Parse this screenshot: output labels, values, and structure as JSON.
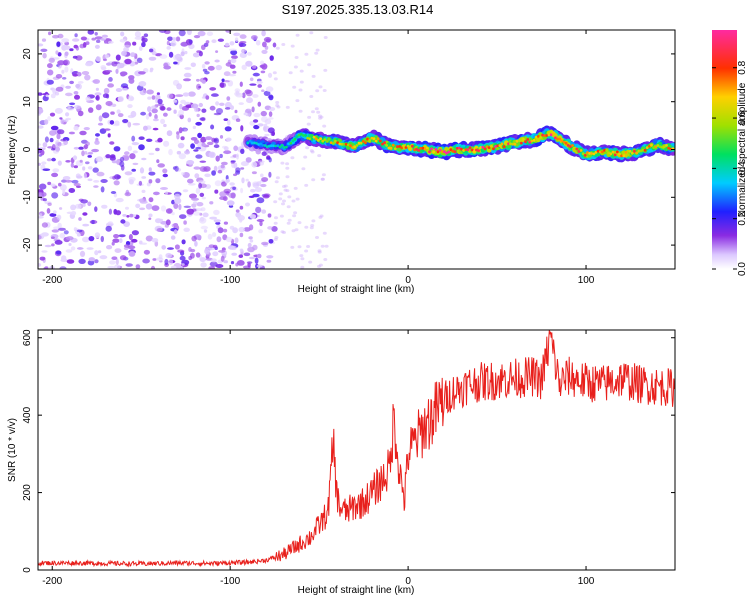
{
  "title": "S197.2025.335.13.03.R14",
  "colors": {
    "snr_line": "#e8201c",
    "frame": "#000000"
  },
  "chart_data": [
    {
      "type": "heatmap",
      "xlabel": "Height of straight line (km)",
      "ylabel": "Frequency (Hz)",
      "xlim": [
        -208,
        150
      ],
      "ylim": [
        -25,
        25
      ],
      "xticks": [
        -200,
        -100,
        0,
        100
      ],
      "xtick_labels": [
        "-200",
        "-100",
        "0",
        "100"
      ],
      "yticks": [
        -20,
        -10,
        0,
        10,
        20
      ],
      "ytick_labels": [
        "-20",
        "-10",
        "0",
        "10",
        "20"
      ],
      "noise_region_x": [
        -208,
        -75
      ],
      "signal_ridge": {
        "x": [
          -90,
          -80,
          -70,
          -60,
          -50,
          -40,
          -30,
          -20,
          -10,
          0,
          10,
          20,
          30,
          40,
          50,
          60,
          70,
          80,
          90,
          100,
          110,
          120,
          130,
          140,
          150
        ],
        "freq": [
          1.5,
          1.0,
          0.5,
          3.0,
          2.0,
          1.5,
          0.5,
          2.5,
          0.5,
          0.5,
          0.0,
          -0.5,
          0.0,
          0.0,
          0.5,
          1.5,
          2.0,
          3.5,
          1.0,
          -1.0,
          -0.5,
          -1.0,
          -0.5,
          1.0,
          0.0
        ],
        "amplitude": [
          0.35,
          0.35,
          0.4,
          0.55,
          0.65,
          0.7,
          0.7,
          0.75,
          0.75,
          0.8,
          0.85,
          0.9,
          0.8,
          0.85,
          0.85,
          0.8,
          0.8,
          0.85,
          0.8,
          0.75,
          0.75,
          0.8,
          0.75,
          0.7,
          0.7
        ]
      },
      "colorbar": {
        "label": "Normalized spectral amplitude",
        "range": [
          0,
          0.95
        ],
        "ticks": [
          0,
          0.2,
          0.4,
          0.6,
          0.8
        ],
        "tick_labels": [
          "0.0",
          "0.2",
          "0.4",
          "0.6",
          "0.8"
        ]
      }
    },
    {
      "type": "line",
      "xlabel": "Height of straight line (km)",
      "ylabel": "SNR (10 * v/v)",
      "xlim": [
        -208,
        150
      ],
      "ylim": [
        0,
        620
      ],
      "xticks": [
        -200,
        -100,
        0,
        100
      ],
      "xtick_labels": [
        "-200",
        "-100",
        "0",
        "100"
      ],
      "yticks": [
        0,
        200,
        400,
        600
      ],
      "ytick_labels": [
        "0",
        "200",
        "400",
        "600"
      ],
      "series": [
        {
          "name": "SNR",
          "x": [
            -208,
            -190,
            -170,
            -150,
            -130,
            -110,
            -90,
            -80,
            -70,
            -65,
            -60,
            -55,
            -50,
            -45,
            -42,
            -40,
            -38,
            -35,
            -30,
            -25,
            -20,
            -15,
            -12,
            -10,
            -8,
            -5,
            -2,
            0,
            5,
            10,
            15,
            20,
            25,
            30,
            35,
            40,
            50,
            60,
            70,
            75,
            80,
            85,
            90,
            100,
            110,
            120,
            130,
            140,
            150
          ],
          "values": [
            18,
            18,
            17,
            16,
            18,
            17,
            20,
            25,
            40,
            55,
            70,
            85,
            115,
            150,
            330,
            190,
            160,
            150,
            165,
            175,
            200,
            230,
            250,
            270,
            400,
            260,
            180,
            300,
            340,
            375,
            405,
            440,
            460,
            470,
            480,
            485,
            490,
            495,
            500,
            490,
            600,
            480,
            500,
            485,
            480,
            495,
            480,
            475,
            470
          ]
        }
      ]
    }
  ]
}
